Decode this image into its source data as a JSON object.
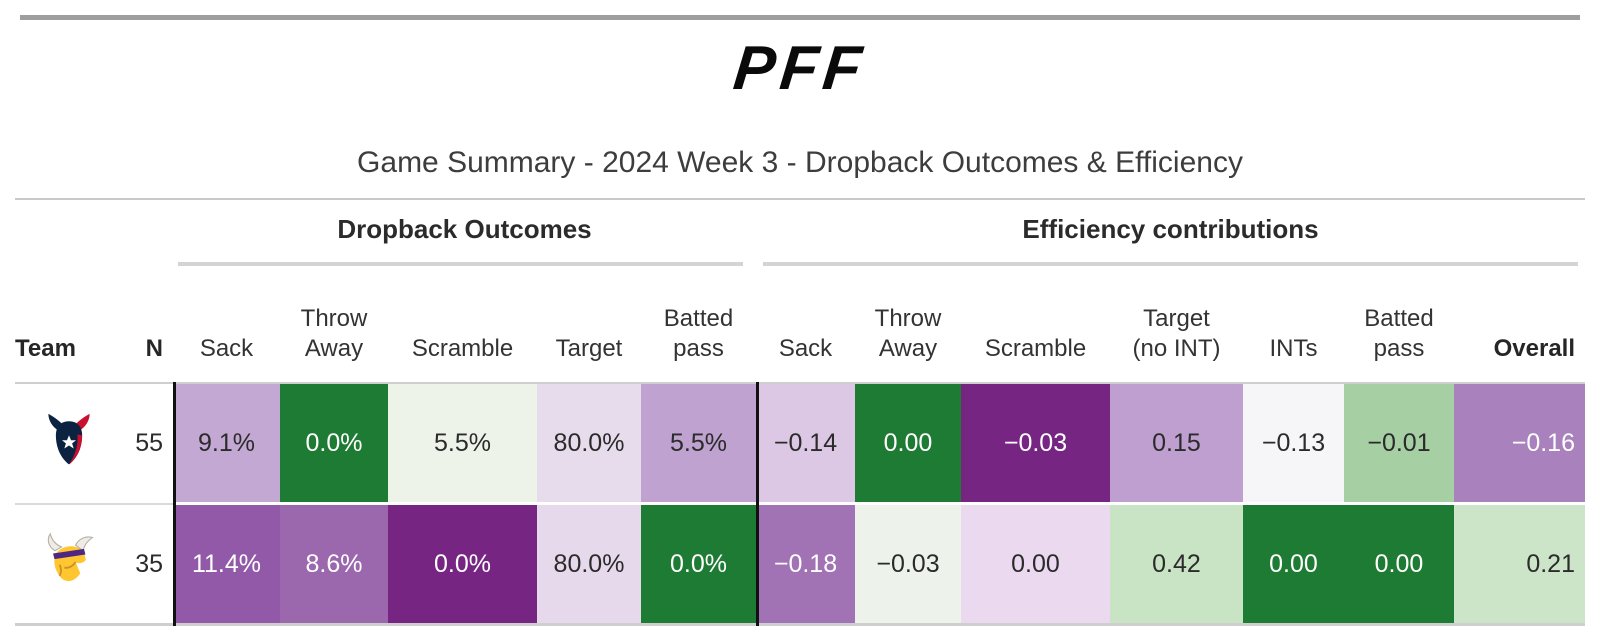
{
  "header": {
    "logo_text": "PFF",
    "title": "Game Summary - 2024 Week 3 - Dropback Outcomes & Efficiency"
  },
  "table": {
    "group_headers": [
      {
        "label": "Dropback Outcomes"
      },
      {
        "label": "Efficiency contributions"
      }
    ],
    "columns": [
      {
        "key": "team",
        "lines": [
          "Team"
        ],
        "bold": true,
        "align": "left"
      },
      {
        "key": "n",
        "lines": [
          "N"
        ],
        "bold": true,
        "align": "right"
      },
      {
        "key": "do_sack",
        "lines": [
          "Sack"
        ],
        "bold": false,
        "align": "center"
      },
      {
        "key": "do_throw_away",
        "lines": [
          "Throw",
          "Away"
        ],
        "bold": false,
        "align": "center"
      },
      {
        "key": "do_scramble",
        "lines": [
          "Scramble"
        ],
        "bold": false,
        "align": "center"
      },
      {
        "key": "do_target",
        "lines": [
          "Target"
        ],
        "bold": false,
        "align": "center"
      },
      {
        "key": "do_batted_pass",
        "lines": [
          "Batted",
          "pass"
        ],
        "bold": false,
        "align": "center"
      },
      {
        "key": "ef_sack",
        "lines": [
          "Sack"
        ],
        "bold": false,
        "align": "center"
      },
      {
        "key": "ef_throw_away",
        "lines": [
          "Throw",
          "Away"
        ],
        "bold": false,
        "align": "center"
      },
      {
        "key": "ef_scramble",
        "lines": [
          "Scramble"
        ],
        "bold": false,
        "align": "center"
      },
      {
        "key": "ef_target_no_int",
        "lines": [
          "Target",
          "(no INT)"
        ],
        "bold": false,
        "align": "center"
      },
      {
        "key": "ef_ints",
        "lines": [
          "INTs"
        ],
        "bold": false,
        "align": "center"
      },
      {
        "key": "ef_batted_pass",
        "lines": [
          "Batted",
          "pass"
        ],
        "bold": false,
        "align": "center"
      },
      {
        "key": "ef_overall",
        "lines": [
          "Overall"
        ],
        "bold": true,
        "align": "right"
      }
    ],
    "rows": [
      {
        "team": "Houston Texans",
        "icon": "texans-logo",
        "n": "55",
        "cells": [
          {
            "text": "9.1%",
            "bg": "#c3a8d3",
            "fg": "#2b2b2b"
          },
          {
            "text": "0.0%",
            "bg": "#1e7b33",
            "fg": "#ffffff"
          },
          {
            "text": "5.5%",
            "bg": "#eef3ea",
            "fg": "#2b2b2b"
          },
          {
            "text": "80.0%",
            "bg": "#e7dcec",
            "fg": "#2b2b2b"
          },
          {
            "text": "5.5%",
            "bg": "#bfa2d0",
            "fg": "#2b2b2b"
          },
          {
            "text": "−0.14",
            "bg": "#dcc8e4",
            "fg": "#2b2b2b"
          },
          {
            "text": "0.00",
            "bg": "#1e7b33",
            "fg": "#ffffff"
          },
          {
            "text": "−0.03",
            "bg": "#762583",
            "fg": "#ffffff"
          },
          {
            "text": "0.15",
            "bg": "#bf9ed0",
            "fg": "#2b2b2b"
          },
          {
            "text": "−0.13",
            "bg": "#f6f5f7",
            "fg": "#2b2b2b"
          },
          {
            "text": "−0.01",
            "bg": "#a7cfa4",
            "fg": "#2b2b2b"
          },
          {
            "text": "−0.16",
            "bg": "#a982bd",
            "fg": "#ffffff"
          }
        ]
      },
      {
        "team": "Minnesota Vikings",
        "icon": "vikings-logo",
        "n": "35",
        "cells": [
          {
            "text": "11.4%",
            "bg": "#9159a8",
            "fg": "#ffffff"
          },
          {
            "text": "8.6%",
            "bg": "#9c68ad",
            "fg": "#ffffff"
          },
          {
            "text": "0.0%",
            "bg": "#762583",
            "fg": "#ffffff"
          },
          {
            "text": "80.0%",
            "bg": "#e7d9ec",
            "fg": "#2b2b2b"
          },
          {
            "text": "0.0%",
            "bg": "#1e7b33",
            "fg": "#ffffff"
          },
          {
            "text": "−0.18",
            "bg": "#a172b4",
            "fg": "#ffffff"
          },
          {
            "text": "−0.03",
            "bg": "#edf3ea",
            "fg": "#2b2b2b"
          },
          {
            "text": "0.00",
            "bg": "#ead9ef",
            "fg": "#2b2b2b"
          },
          {
            "text": "0.42",
            "bg": "#c9e3c5",
            "fg": "#2b2b2b"
          },
          {
            "text": "0.00",
            "bg": "#1e7b33",
            "fg": "#ffffff"
          },
          {
            "text": "0.00",
            "bg": "#1e7b33",
            "fg": "#ffffff"
          },
          {
            "text": "0.21",
            "bg": "#cce4c8",
            "fg": "#2b2b2b"
          }
        ]
      }
    ]
  },
  "chart_data": {
    "type": "table",
    "title": "Game Summary - 2024 Week 3 - Dropback Outcomes & Efficiency",
    "column_groups": [
      "Dropback Outcomes",
      "Efficiency contributions"
    ],
    "heatmap_palette": {
      "negative_extreme": "#762583",
      "neutral": "#f6f5f7",
      "positive_extreme": "#1e7b33"
    },
    "rows": [
      {
        "team": "Houston Texans",
        "n": 55,
        "dropback_outcomes": {
          "sack_pct": 9.1,
          "throw_away_pct": 0.0,
          "scramble_pct": 5.5,
          "target_pct": 80.0,
          "batted_pass_pct": 5.5
        },
        "efficiency_contributions": {
          "sack": -0.14,
          "throw_away": 0.0,
          "scramble": -0.03,
          "target_no_int": 0.15,
          "ints": -0.13,
          "batted_pass": -0.01,
          "overall": -0.16
        }
      },
      {
        "team": "Minnesota Vikings",
        "n": 35,
        "dropback_outcomes": {
          "sack_pct": 11.4,
          "throw_away_pct": 8.6,
          "scramble_pct": 0.0,
          "target_pct": 80.0,
          "batted_pass_pct": 0.0
        },
        "efficiency_contributions": {
          "sack": -0.18,
          "throw_away": -0.03,
          "scramble": 0.0,
          "target_no_int": 0.42,
          "ints": 0.0,
          "batted_pass": 0.0,
          "overall": 0.21
        }
      }
    ]
  }
}
